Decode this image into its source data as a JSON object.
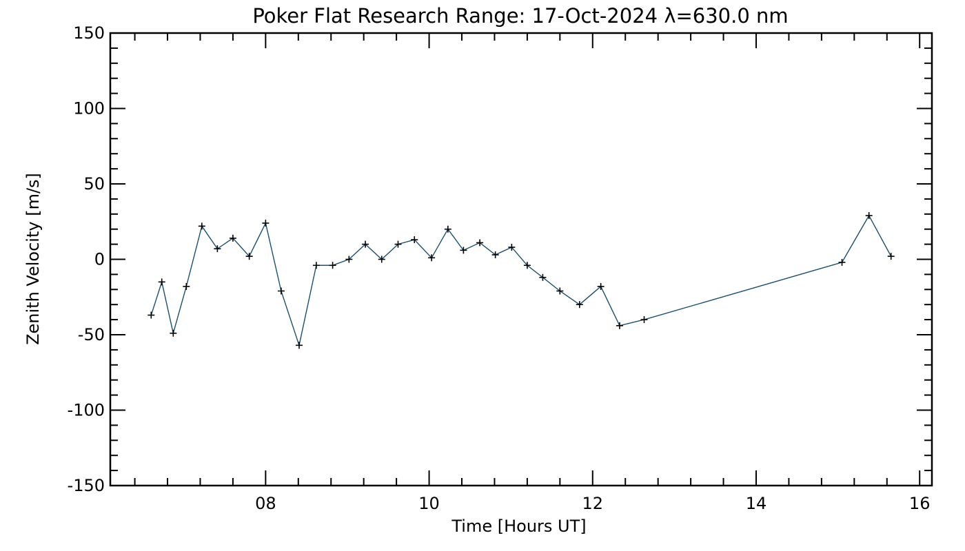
{
  "chart_data": {
    "type": "line",
    "title": "Poker Flat Research Range: 17-Oct-2024 λ=630.0 nm",
    "xlabel": "Time [Hours UT]",
    "ylabel": "Zenith Velocity [m/s]",
    "xlim": [
      6.1,
      16.15
    ],
    "ylim": [
      -150,
      150
    ],
    "xticks": [
      {
        "value": 8,
        "label": "08"
      },
      {
        "value": 10,
        "label": "10"
      },
      {
        "value": 12,
        "label": "12"
      },
      {
        "value": 14,
        "label": "14"
      },
      {
        "value": 16,
        "label": "16"
      }
    ],
    "xminor_step": 0.4,
    "yticks": [
      {
        "value": 150,
        "label": "150"
      },
      {
        "value": 100,
        "label": "100"
      },
      {
        "value": 50,
        "label": "50"
      },
      {
        "value": 0,
        "label": "0"
      },
      {
        "value": -50,
        "label": "-50"
      },
      {
        "value": -100,
        "label": "-100"
      },
      {
        "value": -150,
        "label": "-150"
      }
    ],
    "yminor_step": 10,
    "line_color": "#1d4f6e",
    "marker": "+",
    "series": [
      {
        "name": "Zenith Velocity",
        "x": [
          6.6,
          6.73,
          6.87,
          7.03,
          7.22,
          7.41,
          7.6,
          7.8,
          8.0,
          8.19,
          8.41,
          8.62,
          8.82,
          9.02,
          9.22,
          9.42,
          9.62,
          9.82,
          10.03,
          10.23,
          10.42,
          10.62,
          10.81,
          11.01,
          11.2,
          11.39,
          11.6,
          11.84,
          12.1,
          12.33,
          12.63,
          15.05,
          15.38,
          15.65
        ],
        "y": [
          -37,
          -15,
          -49,
          -18,
          22,
          7,
          14,
          2,
          24,
          -21,
          -57,
          -4,
          -4,
          0,
          10,
          0,
          10,
          13,
          1,
          20,
          6,
          11,
          3,
          8,
          -4,
          -12,
          -21,
          -30,
          -18,
          -44,
          -40,
          -2,
          29,
          2
        ]
      }
    ]
  }
}
